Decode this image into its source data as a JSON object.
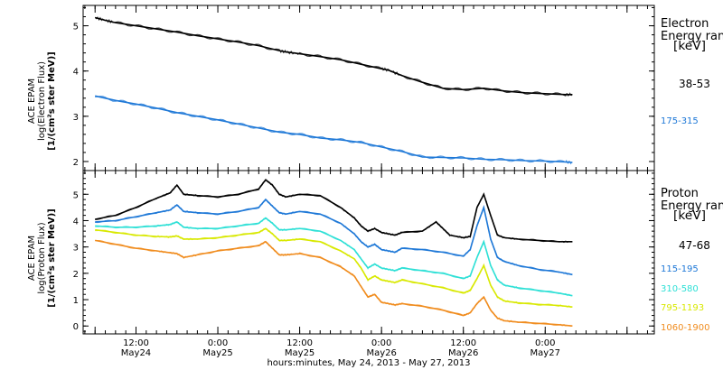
{
  "chart_data": [
    {
      "type": "line",
      "panel": "electron",
      "ylabel_lines": [
        "ACE EPAM",
        "log(Electron Flux)",
        "[1/(cm²s ster MeV)]"
      ],
      "ylim": [
        1.8,
        5.45
      ],
      "yticks": [
        2,
        3,
        4,
        5
      ],
      "legend_title": [
        "Electron",
        "Energy ranges",
        "[keV]"
      ],
      "series": [
        {
          "name": "38-53",
          "color": "#000000",
          "x": [
            0,
            3,
            6,
            12,
            18,
            24,
            30,
            36,
            42,
            48,
            54,
            56,
            60,
            66,
            72,
            78,
            84,
            86,
            90,
            96,
            102,
            108,
            114,
            120,
            126,
            132,
            138,
            140
          ],
          "y": [
            5.18,
            5.12,
            5.07,
            5.0,
            4.93,
            4.86,
            4.78,
            4.71,
            4.64,
            4.56,
            4.45,
            4.42,
            4.38,
            4.32,
            4.25,
            4.15,
            4.05,
            4.02,
            3.9,
            3.75,
            3.62,
            3.59,
            3.62,
            3.56,
            3.52,
            3.5,
            3.48,
            3.48
          ]
        },
        {
          "name": "175-315",
          "color": "#1e78d7",
          "x": [
            0,
            6,
            12,
            18,
            24,
            30,
            36,
            42,
            48,
            54,
            60,
            66,
            72,
            78,
            84,
            90,
            96,
            102,
            108,
            114,
            120,
            126,
            132,
            138,
            140
          ],
          "y": [
            3.45,
            3.35,
            3.27,
            3.18,
            3.08,
            3.0,
            2.92,
            2.83,
            2.74,
            2.65,
            2.6,
            2.52,
            2.48,
            2.42,
            2.32,
            2.22,
            2.1,
            2.09,
            2.08,
            2.05,
            2.04,
            2.02,
            2.01,
            1.99,
            1.98
          ]
        }
      ]
    },
    {
      "type": "line",
      "panel": "proton",
      "ylabel_lines": [
        "ACE EPAM",
        "log(Proton Flux)",
        "[1/(cm²s ster MeV)]"
      ],
      "ylim": [
        -0.3,
        5.9
      ],
      "yticks": [
        0,
        1,
        2,
        3,
        4,
        5
      ],
      "legend_title": [
        "Proton",
        "Energy ranges",
        "[keV]"
      ],
      "series": [
        {
          "name": "47-68",
          "color": "#000000",
          "x": [
            0,
            6,
            12,
            18,
            22,
            24,
            26,
            30,
            36,
            42,
            48,
            50,
            52,
            54,
            56,
            60,
            66,
            72,
            76,
            78,
            80,
            82,
            84,
            86,
            88,
            90,
            96,
            100,
            102,
            104,
            108,
            110,
            112,
            114,
            116,
            118,
            120,
            124,
            130,
            136,
            140
          ],
          "y": [
            4.05,
            4.2,
            4.5,
            4.85,
            5.05,
            5.35,
            5.0,
            4.95,
            4.9,
            5.0,
            5.2,
            5.55,
            5.35,
            5.0,
            4.9,
            5.0,
            4.95,
            4.5,
            4.1,
            3.8,
            3.6,
            3.7,
            3.55,
            3.5,
            3.45,
            3.55,
            3.6,
            3.95,
            3.7,
            3.45,
            3.35,
            3.4,
            4.5,
            5.0,
            4.2,
            3.45,
            3.35,
            3.3,
            3.25,
            3.2,
            3.2
          ]
        },
        {
          "name": "115-195",
          "color": "#1e78d7",
          "x": [
            0,
            6,
            12,
            18,
            22,
            24,
            26,
            30,
            36,
            42,
            48,
            50,
            52,
            54,
            56,
            60,
            66,
            72,
            76,
            78,
            80,
            82,
            84,
            86,
            88,
            90,
            96,
            102,
            108,
            110,
            112,
            114,
            116,
            118,
            120,
            124,
            130,
            136,
            140
          ],
          "y": [
            3.95,
            4.0,
            4.15,
            4.3,
            4.4,
            4.6,
            4.35,
            4.3,
            4.25,
            4.35,
            4.5,
            4.8,
            4.55,
            4.3,
            4.25,
            4.35,
            4.25,
            3.9,
            3.5,
            3.2,
            3.0,
            3.1,
            2.9,
            2.85,
            2.8,
            2.95,
            2.9,
            2.8,
            2.65,
            2.9,
            3.8,
            4.5,
            3.3,
            2.6,
            2.45,
            2.3,
            2.15,
            2.05,
            1.95
          ]
        },
        {
          "name": "310-580",
          "color": "#2ee0d6",
          "x": [
            0,
            6,
            12,
            18,
            22,
            24,
            26,
            30,
            36,
            42,
            48,
            50,
            52,
            54,
            56,
            60,
            66,
            72,
            76,
            78,
            80,
            82,
            84,
            86,
            88,
            90,
            96,
            102,
            108,
            110,
            112,
            114,
            116,
            118,
            120,
            124,
            130,
            136,
            140
          ],
          "y": [
            3.8,
            3.75,
            3.75,
            3.8,
            3.85,
            3.95,
            3.75,
            3.7,
            3.7,
            3.8,
            3.9,
            4.1,
            3.9,
            3.65,
            3.65,
            3.7,
            3.6,
            3.25,
            2.9,
            2.55,
            2.2,
            2.35,
            2.2,
            2.15,
            2.1,
            2.2,
            2.1,
            2.0,
            1.8,
            1.9,
            2.6,
            3.2,
            2.3,
            1.75,
            1.55,
            1.45,
            1.35,
            1.25,
            1.15
          ]
        },
        {
          "name": "795-1193",
          "color": "#d8e800",
          "x": [
            0,
            6,
            12,
            18,
            22,
            24,
            26,
            30,
            36,
            42,
            48,
            50,
            52,
            54,
            56,
            60,
            66,
            72,
            76,
            78,
            80,
            82,
            84,
            86,
            88,
            90,
            96,
            102,
            108,
            110,
            112,
            114,
            116,
            118,
            120,
            124,
            130,
            136,
            140
          ],
          "y": [
            3.65,
            3.55,
            3.45,
            3.4,
            3.38,
            3.42,
            3.3,
            3.3,
            3.35,
            3.45,
            3.55,
            3.7,
            3.5,
            3.25,
            3.25,
            3.3,
            3.2,
            2.85,
            2.55,
            2.2,
            1.75,
            1.9,
            1.75,
            1.7,
            1.65,
            1.75,
            1.6,
            1.45,
            1.25,
            1.35,
            1.8,
            2.3,
            1.55,
            1.1,
            0.95,
            0.88,
            0.82,
            0.78,
            0.72
          ]
        },
        {
          "name": "1060-1900",
          "color": "#f08c1e",
          "x": [
            0,
            6,
            12,
            18,
            22,
            24,
            26,
            30,
            36,
            42,
            48,
            50,
            52,
            54,
            56,
            60,
            66,
            72,
            76,
            78,
            80,
            82,
            84,
            86,
            88,
            90,
            96,
            102,
            108,
            110,
            112,
            114,
            116,
            118,
            120,
            124,
            130,
            136,
            140
          ],
          "y": [
            3.25,
            3.1,
            2.95,
            2.85,
            2.78,
            2.75,
            2.6,
            2.7,
            2.85,
            2.95,
            3.05,
            3.2,
            2.95,
            2.7,
            2.7,
            2.75,
            2.6,
            2.25,
            1.9,
            1.5,
            1.1,
            1.2,
            0.9,
            0.85,
            0.8,
            0.85,
            0.75,
            0.6,
            0.4,
            0.5,
            0.85,
            1.1,
            0.6,
            0.3,
            0.2,
            0.15,
            0.1,
            0.05,
            0.0
          ]
        }
      ]
    }
  ],
  "x_axis": {
    "xlim": [
      -3.5,
      164
    ],
    "ticks": [
      {
        "x": 0,
        "label": "",
        "sub": ""
      },
      {
        "x": 12,
        "label": "12:00",
        "sub": "May24"
      },
      {
        "x": 36,
        "label": "0:00",
        "sub": "May25"
      },
      {
        "x": 60,
        "label": "12:00",
        "sub": "May25"
      },
      {
        "x": 84,
        "label": "0:00",
        "sub": "May26"
      },
      {
        "x": 108,
        "label": "12:00",
        "sub": "May26"
      },
      {
        "x": 132,
        "label": "0:00",
        "sub": "May27"
      },
      {
        "x": 156,
        "label": "",
        "sub": ""
      }
    ],
    "xlabel": "hours:minutes, May 24, 2013 - May 27, 2013"
  }
}
